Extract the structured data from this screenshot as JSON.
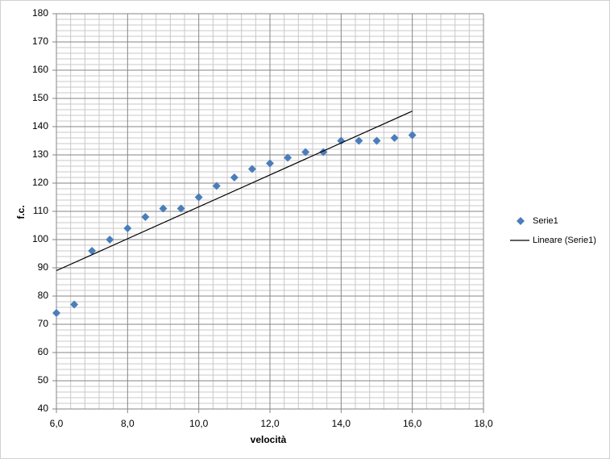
{
  "chart_data": {
    "type": "scatter",
    "x_label": "velocità",
    "y_label": "f.c.",
    "x": [
      6,
      6.5,
      7,
      7.5,
      8,
      8.5,
      9,
      9.5,
      10,
      10.5,
      11,
      11.5,
      12,
      12.5,
      13,
      13.5,
      14,
      14.5,
      15,
      15.5,
      16
    ],
    "series": [
      {
        "name": "Serie1",
        "color": "#4a7ebb",
        "marker": "diamond",
        "values": [
          74,
          77,
          96,
          100,
          104,
          108,
          111,
          111,
          115,
          119,
          122,
          125,
          127,
          129,
          131,
          131,
          135,
          135,
          135,
          136,
          137
        ]
      },
      {
        "name": "Lineare (Serie1)",
        "color": "#000000",
        "type": "line",
        "x": [
          6,
          16
        ],
        "values": [
          89,
          145.5
        ]
      }
    ],
    "xlim": [
      6,
      18
    ],
    "ylim": [
      40,
      180
    ],
    "xticks": [
      {
        "value": 6,
        "label": "6,0"
      },
      {
        "value": 8,
        "label": "8,0"
      },
      {
        "value": 10,
        "label": "10,0"
      },
      {
        "value": 12,
        "label": "12,0"
      },
      {
        "value": 14,
        "label": "14,0"
      },
      {
        "value": 16,
        "label": "16,0"
      },
      {
        "value": 18,
        "label": "18,0"
      }
    ],
    "yticks": [
      40,
      50,
      60,
      70,
      80,
      90,
      100,
      110,
      120,
      130,
      140,
      150,
      160,
      170,
      180
    ],
    "grid": true,
    "minor_grid": true,
    "legend": "right"
  }
}
